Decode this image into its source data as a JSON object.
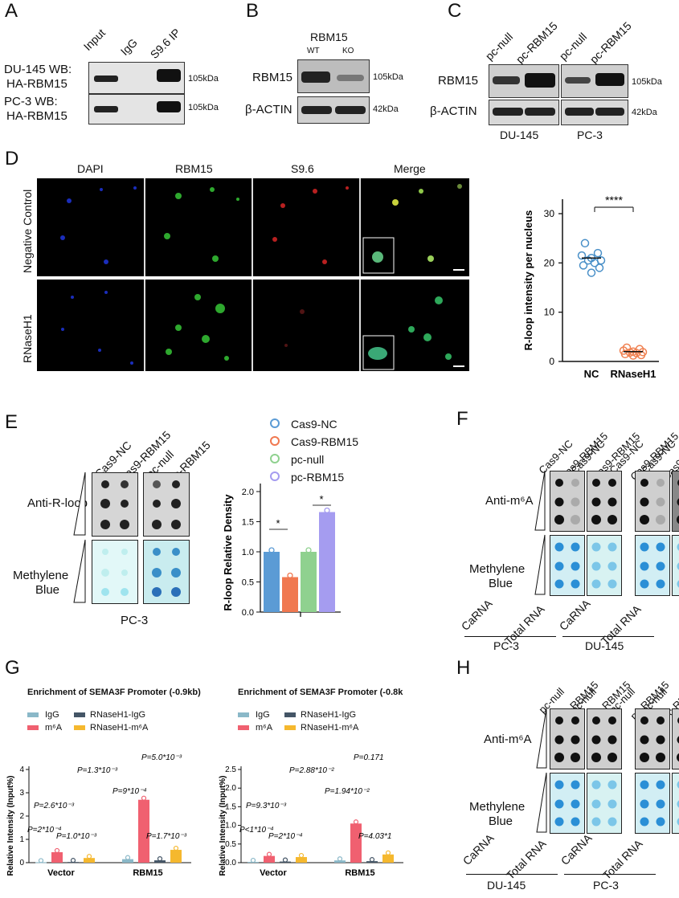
{
  "panels": {
    "A": "A",
    "B": "B",
    "C": "C",
    "D": "D",
    "E": "E",
    "F": "F",
    "G": "G",
    "H": "H"
  },
  "A": {
    "cols": [
      "Input",
      "IgG",
      "S9.6 IP"
    ],
    "rows": [
      {
        "l1": "DU-145 WB:",
        "l2": "HA-RBM15",
        "size": "105kDa"
      },
      {
        "l1": "PC-3 WB:",
        "l2": "HA-RBM15",
        "size": "105kDa"
      }
    ]
  },
  "B": {
    "title": "RBM15",
    "wt": "WT",
    "ko": "KO",
    "rows": [
      {
        "label": "RBM15",
        "size": "105kDa"
      },
      {
        "label": "β-ACTIN",
        "size": "42kDa"
      }
    ]
  },
  "C": {
    "cols": [
      "pc-null",
      "pc-RBM15",
      "pc-null",
      "pc-RBM15"
    ],
    "rows": [
      {
        "label": "RBM15",
        "size": "105kDa"
      },
      {
        "label": "β-ACTIN",
        "size": "42kDa"
      }
    ],
    "cells": [
      "DU-145",
      "PC-3"
    ]
  },
  "D": {
    "cols": [
      "DAPI",
      "RBM15",
      "S9.6",
      "Merge"
    ],
    "rows": [
      "Negative Control",
      "RNaseH1"
    ],
    "chart": {
      "ylabel": "R-loop intensity per nucleus",
      "yticks": [
        "0",
        "10",
        "20",
        "30"
      ],
      "xcats": [
        "NC",
        "RNaseH1"
      ],
      "sig": "****"
    }
  },
  "E": {
    "cols": [
      "Cas9-NC",
      "Cas9-RBM15",
      "pc-null",
      "pc-RBM15"
    ],
    "rows": [
      "Anti-R-loop",
      "Methylene",
      "Blue"
    ],
    "cell": "PC-3",
    "legend": [
      "Cas9-NC",
      "Cas9-RBM15",
      "pc-null",
      "pc-RBM15"
    ],
    "chart": {
      "ylabel": "R-loop Relative Density",
      "yticks": [
        "0.0",
        "0.5",
        "1.0",
        "1.5",
        "2.0"
      ],
      "sig1": "*",
      "sig2": "*"
    }
  },
  "F": {
    "cols": [
      "Cas9-NC",
      "Cas9-RBM15",
      "Cas9-NC",
      "Cas9-RBM15",
      "Cas9-NC",
      "Cas9-RBM15",
      "Cas9-NC",
      "Cas9-RBM15"
    ],
    "anti": "Anti-m⁶A",
    "mb1": "Methylene",
    "mb2": "Blue",
    "bottom": [
      "CaRNA",
      "Total RNA",
      "CaRNA",
      "Total RNA"
    ],
    "cells": [
      "PC-3",
      "DU-145"
    ]
  },
  "G": {
    "chart1": {
      "title": "Enrichment of SEMA3F Promoter (-0.9kb)",
      "ylabel": "Relative Intensity (Input%)",
      "yticks": [
        "0",
        "1",
        "2",
        "3",
        "4"
      ],
      "xcats": [
        "Vector",
        "RBM15"
      ],
      "annots": [
        "P=1.3*10⁻³",
        "P=5.0*10⁻³",
        "P=9*10⁻⁴",
        "P=2.6*10⁻³",
        "P=2*10⁻⁴",
        "P=1.0*10⁻³",
        "P=1.7*10⁻³"
      ]
    },
    "chart2": {
      "title": "Enrichment of SEMA3F Promoter (-0.8k",
      "ylabel": "Relative Intensity (Input%)",
      "yticks": [
        "0.0",
        "0.5",
        "1.0",
        "1.5",
        "2.0",
        "2.5"
      ],
      "xcats": [
        "Vector",
        "RBM15"
      ],
      "annots": [
        "P=2.88*10⁻²",
        "P=0.171",
        "P=1.94*10⁻²",
        "P=9.3*10⁻³",
        "P<1*10⁻⁴",
        "P=2*10⁻⁴",
        "P=4.03*1"
      ]
    },
    "legend": [
      "IgG",
      "RNaseH1-IgG",
      "m⁶A",
      "RNaseH1-m⁶A"
    ]
  },
  "H": {
    "cols": [
      "pc-null",
      "pc-RBM15",
      "pc-null",
      "pc-RBM15",
      "pc-null",
      "pc-RBM15",
      "pc-null",
      "pc-RBM15"
    ],
    "anti": "Anti-m⁶A",
    "mb1": "Methylene",
    "mb2": "Blue",
    "bottom": [
      "CaRNA",
      "Total RNA",
      "CaRNA",
      "Total RNA"
    ],
    "cells": [
      "DU-145",
      "PC-3"
    ]
  },
  "chart_data": [
    {
      "type": "scatter",
      "panel": "D",
      "ylabel": "R-loop intensity per nucleus",
      "ylim": [
        0,
        30
      ],
      "categories": [
        "NC",
        "RNaseH1"
      ],
      "series": [
        {
          "name": "NC",
          "values": [
            24,
            22,
            21.5,
            21,
            20.5,
            20.5,
            20,
            19.5,
            19,
            18
          ]
        },
        {
          "name": "RNaseH1",
          "values": [
            2.8,
            2.5,
            2.2,
            2,
            1.9,
            1.8,
            1.7,
            1.5,
            1.3,
            1.2
          ]
        }
      ],
      "color_nc": "#4a90c8",
      "color_rn": "#f08050"
    },
    {
      "type": "bar",
      "panel": "E",
      "ylabel": "R-loop Relative Density",
      "ylim": [
        0,
        2
      ],
      "series": [
        {
          "name": "Cas9-NC",
          "value": 1.0,
          "color": "#5b9bd5"
        },
        {
          "name": "Cas9-RBM15",
          "value": 0.58,
          "color": "#f07850"
        },
        {
          "name": "pc-null",
          "value": 1.0,
          "color": "#8fd18f"
        },
        {
          "name": "pc-RBM15",
          "value": 1.66,
          "color": "#a59cf0"
        }
      ]
    },
    {
      "type": "bar",
      "panel": "G1",
      "ylabel": "Relative Intensity (Input%)",
      "ylim": [
        0,
        4
      ],
      "categories": [
        "Vector",
        "RBM15"
      ],
      "series": [
        {
          "name": "IgG",
          "values": [
            0.02,
            0.15
          ],
          "color": "#8ab8c8"
        },
        {
          "name": "m⁶A",
          "values": [
            0.45,
            2.7
          ],
          "color": "#f06070"
        },
        {
          "name": "RNaseH1-IgG",
          "values": [
            0.03,
            0.1
          ],
          "color": "#445566"
        },
        {
          "name": "RNaseH1-m⁶A",
          "values": [
            0.2,
            0.55
          ],
          "color": "#f5b82e"
        }
      ]
    },
    {
      "type": "bar",
      "panel": "G2",
      "ylabel": "Relative Intensity (Input%)",
      "ylim": [
        0,
        2.5
      ],
      "categories": [
        "Vector",
        "RBM15"
      ],
      "series": [
        {
          "name": "IgG",
          "values": [
            0.02,
            0.06
          ],
          "color": "#8ab8c8"
        },
        {
          "name": "m⁶A",
          "values": [
            0.18,
            1.05
          ],
          "color": "#f06070"
        },
        {
          "name": "RNaseH1-IgG",
          "values": [
            0.03,
            0.04
          ],
          "color": "#445566"
        },
        {
          "name": "RNaseH1-m⁶A",
          "values": [
            0.15,
            0.22
          ],
          "color": "#f5b82e"
        }
      ]
    }
  ]
}
